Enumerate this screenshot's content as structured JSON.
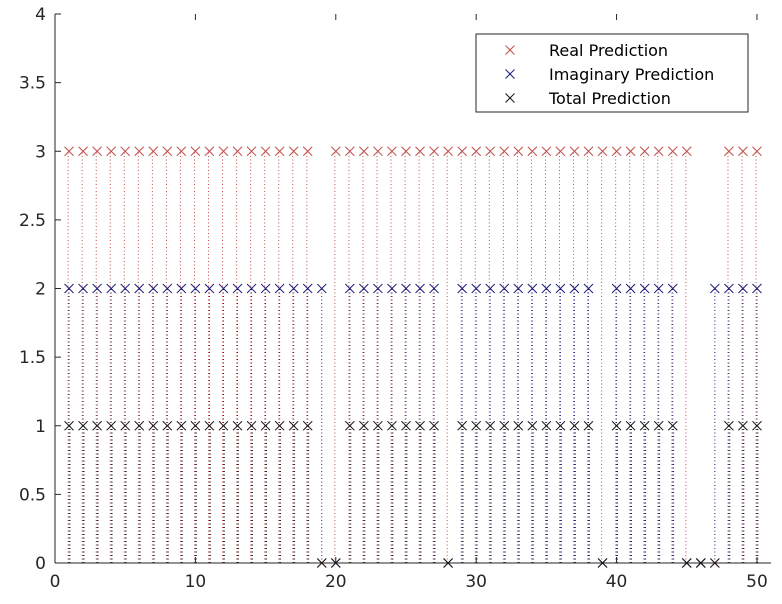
{
  "chart_data": {
    "type": "scatter",
    "title": "",
    "xlabel": "",
    "ylabel": "",
    "xlim": [
      0,
      51
    ],
    "ylim": [
      0,
      4
    ],
    "xticks": [
      0,
      10,
      20,
      30,
      40,
      50
    ],
    "yticks": [
      0,
      0.5,
      1,
      1.5,
      2,
      2.5,
      3,
      3.5,
      4
    ],
    "xtick_labels": [
      "0",
      "10",
      "20",
      "30",
      "40",
      "50"
    ],
    "ytick_labels": [
      "0",
      "0.5",
      "1",
      "1.5",
      "2",
      "2.5",
      "3",
      "3.5",
      "4"
    ],
    "grid": false,
    "legend_position": "top-right",
    "marker": "x",
    "stems": "dotted",
    "x": [
      1,
      2,
      3,
      4,
      5,
      6,
      7,
      8,
      9,
      10,
      11,
      12,
      13,
      14,
      15,
      16,
      17,
      18,
      19,
      20,
      21,
      22,
      23,
      24,
      25,
      26,
      27,
      28,
      29,
      30,
      31,
      32,
      33,
      34,
      35,
      36,
      37,
      38,
      39,
      40,
      41,
      42,
      43,
      44,
      45,
      46,
      47,
      48,
      49,
      50
    ],
    "series": [
      {
        "name": "Real Prediction",
        "color": "#c0504d",
        "values": [
          3,
          3,
          3,
          3,
          3,
          3,
          3,
          3,
          3,
          3,
          3,
          3,
          3,
          3,
          3,
          3,
          3,
          3,
          0,
          3,
          3,
          3,
          3,
          3,
          3,
          3,
          3,
          3,
          3,
          3,
          3,
          3,
          3,
          3,
          3,
          3,
          3,
          3,
          3,
          3,
          3,
          3,
          3,
          3,
          3,
          0,
          0,
          3,
          3,
          3
        ]
      },
      {
        "name": "Imaginary Prediction",
        "color": "#1f1f7a",
        "values": [
          2,
          2,
          2,
          2,
          2,
          2,
          2,
          2,
          2,
          2,
          2,
          2,
          2,
          2,
          2,
          2,
          2,
          2,
          2,
          0,
          2,
          2,
          2,
          2,
          2,
          2,
          2,
          0,
          2,
          2,
          2,
          2,
          2,
          2,
          2,
          2,
          2,
          2,
          0,
          2,
          2,
          2,
          2,
          2,
          0,
          0,
          2,
          2,
          2,
          2
        ]
      },
      {
        "name": "Total Prediction",
        "color": "#1a1a1a",
        "values": [
          1,
          1,
          1,
          1,
          1,
          1,
          1,
          1,
          1,
          1,
          1,
          1,
          1,
          1,
          1,
          1,
          1,
          1,
          0,
          0,
          1,
          1,
          1,
          1,
          1,
          1,
          1,
          0,
          1,
          1,
          1,
          1,
          1,
          1,
          1,
          1,
          1,
          1,
          0,
          1,
          1,
          1,
          1,
          1,
          0,
          0,
          0,
          1,
          1,
          1
        ]
      }
    ]
  }
}
